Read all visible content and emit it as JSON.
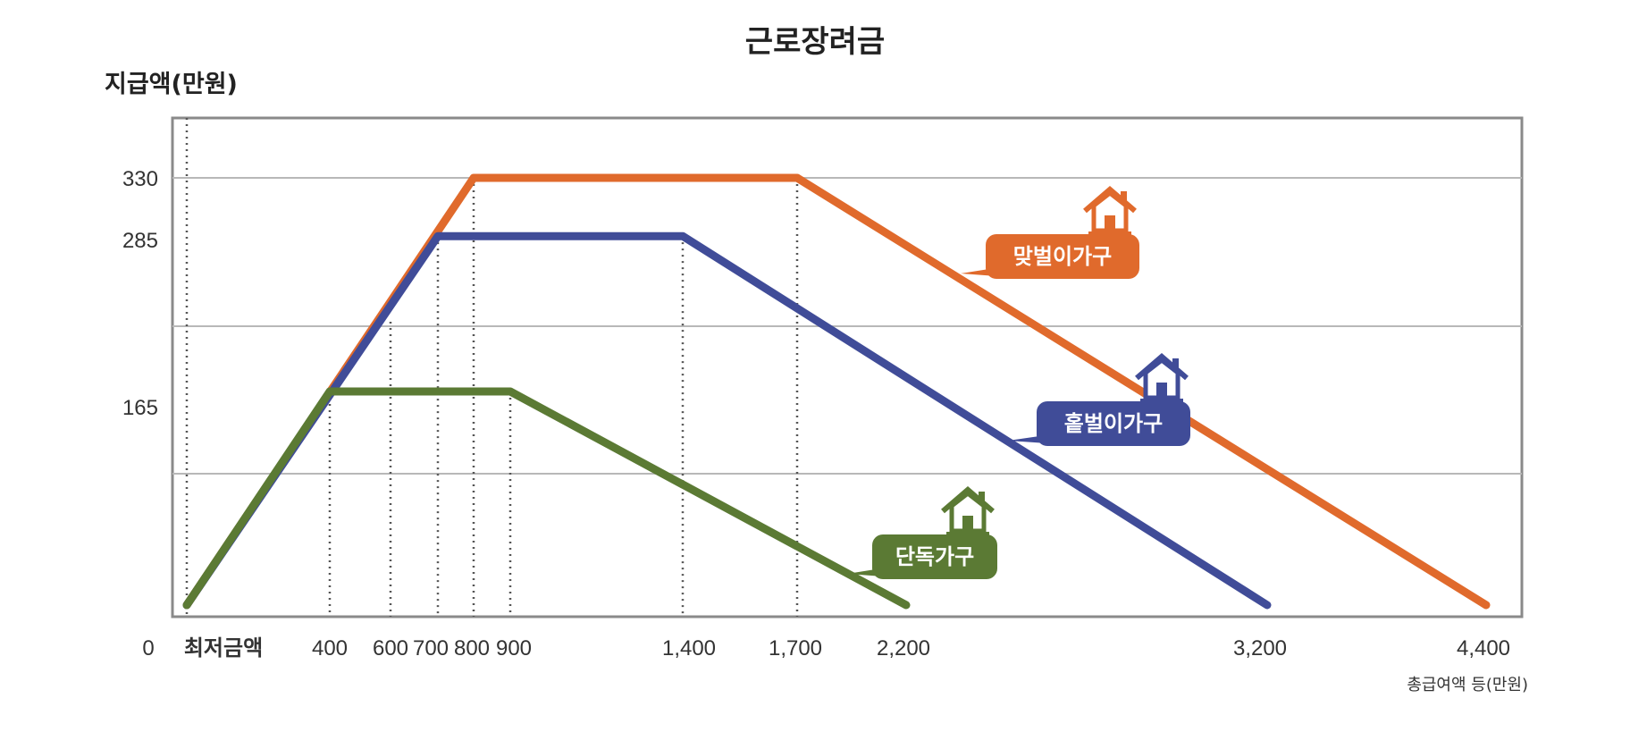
{
  "chart_data": {
    "type": "line",
    "title": "근로장려금",
    "ylabel": "지급액(만원)",
    "xlabel": "총급여액 등(만원)",
    "x_ticks": [
      "0",
      "최저금액",
      "400",
      "600",
      "700",
      "800",
      "900",
      "1,400",
      "1,700",
      "2,200",
      "3,200",
      "4,400"
    ],
    "y_ticks": [
      "330",
      "285",
      "165"
    ],
    "xlim": [
      0,
      4400
    ],
    "ylim": [
      0,
      330
    ],
    "grid": true,
    "series": [
      {
        "name": "맞벌이가구",
        "color": "#e06a2c",
        "icon": "house-icon",
        "points": [
          [
            0,
            0
          ],
          [
            800,
            330
          ],
          [
            1700,
            330
          ],
          [
            4400,
            0
          ]
        ]
      },
      {
        "name": "홑벌이가구",
        "color": "#404c98",
        "icon": "house-icon",
        "points": [
          [
            0,
            0
          ],
          [
            700,
            285
          ],
          [
            1400,
            285
          ],
          [
            3200,
            0
          ]
        ]
      },
      {
        "name": "단독가구",
        "color": "#5b7a34",
        "icon": "house-icon",
        "points": [
          [
            0,
            0
          ],
          [
            400,
            165
          ],
          [
            900,
            165
          ],
          [
            2200,
            0
          ]
        ]
      }
    ]
  }
}
